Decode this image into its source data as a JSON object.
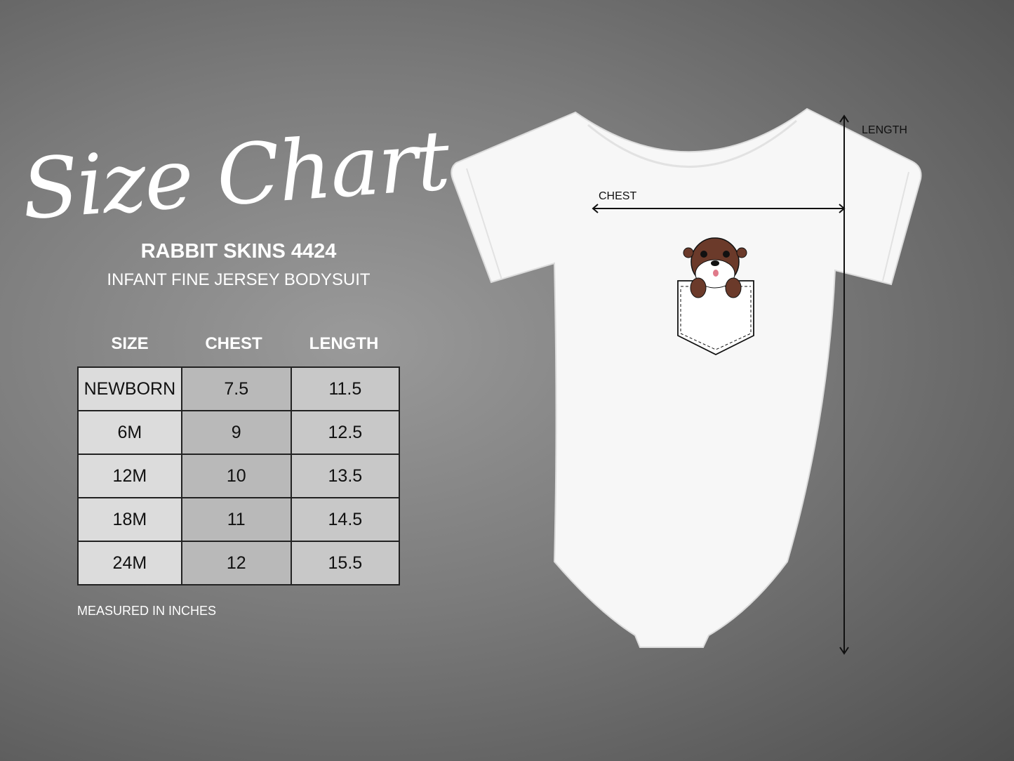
{
  "title": "Size Chart",
  "product": {
    "brand": "RABBIT SKINS 4424",
    "description": "INFANT FINE JERSEY BODYSUIT"
  },
  "table": {
    "headers": [
      "SIZE",
      "CHEST",
      "LENGTH"
    ],
    "rows": [
      [
        "NEWBORN",
        "7.5",
        "11.5"
      ],
      [
        "6M",
        "9",
        "12.5"
      ],
      [
        "12M",
        "10",
        "13.5"
      ],
      [
        "18M",
        "11",
        "14.5"
      ],
      [
        "24M",
        "12",
        "15.5"
      ]
    ]
  },
  "note": "MEASURED IN INCHES",
  "diagram": {
    "chest_label": "CHEST",
    "length_label": "LENGTH"
  },
  "colors": {
    "otter": "#6b3a2a",
    "garment": "#f7f7f7"
  }
}
